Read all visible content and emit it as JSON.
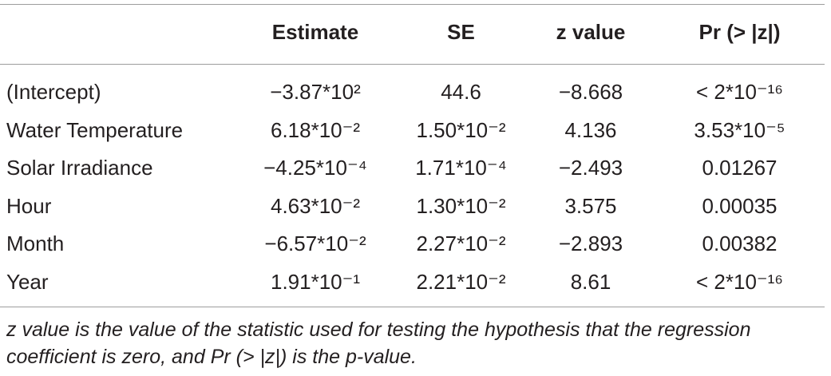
{
  "table": {
    "headers": [
      "",
      "Estimate",
      "SE",
      "z value",
      "Pr (> |z|)"
    ],
    "rows": [
      [
        "(Intercept)",
        "−3.87*10²",
        "44.6",
        "−8.668",
        "< 2*10⁻¹⁶"
      ],
      [
        "Water Temperature",
        "6.18*10⁻²",
        "1.50*10⁻²",
        "4.136",
        "3.53*10⁻⁵"
      ],
      [
        "Solar Irradiance",
        "−4.25*10⁻⁴",
        "1.71*10⁻⁴",
        "−2.493",
        "0.01267"
      ],
      [
        "Hour",
        "4.63*10⁻²",
        "1.30*10⁻²",
        "3.575",
        "0.00035"
      ],
      [
        "Month",
        "−6.57*10⁻²",
        "2.27*10⁻²",
        "−2.893",
        "0.00382"
      ],
      [
        "Year",
        "1.91*10⁻¹",
        "2.21*10⁻²",
        "8.61",
        "< 2*10⁻¹⁶"
      ]
    ]
  },
  "footnote": "z value is the value of the statistic used for testing the hypothesis that the regression coefficient is zero, and Pr (> |z|) is the p-value."
}
